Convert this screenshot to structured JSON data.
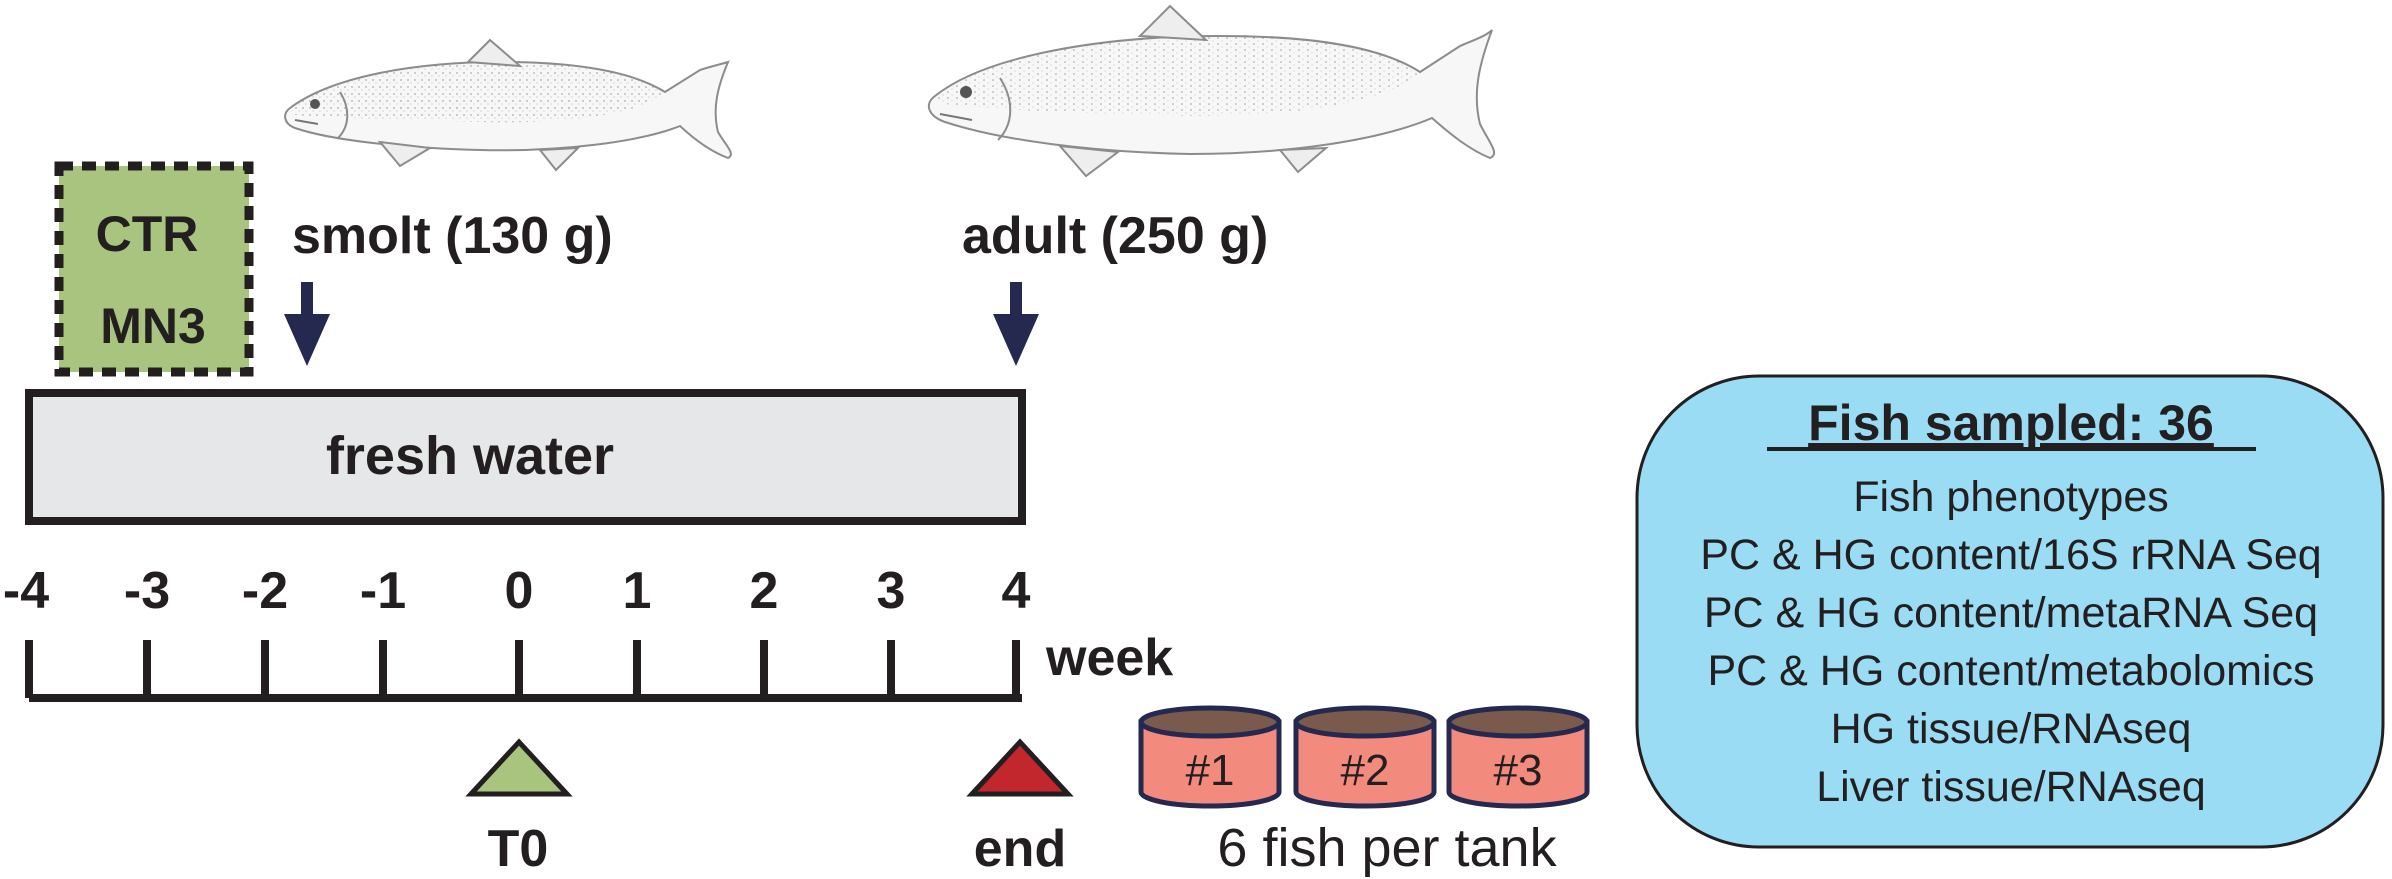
{
  "diet_box": {
    "line1": "CTR",
    "line2": "MN3",
    "fill": "#a8c47e"
  },
  "stages": {
    "smolt": "smolt (130 g)",
    "adult": "adult (250 g)"
  },
  "environment": {
    "label": "fresh water",
    "fill": "#e6e7e8"
  },
  "timeline": {
    "ticks": [
      "-4",
      "-3",
      "-2",
      "-1",
      "0",
      "1",
      "2",
      "3",
      "4"
    ],
    "unit": "week"
  },
  "sampling_points": [
    {
      "label": "T0",
      "color": "#a8c47e"
    },
    {
      "label": "end",
      "color": "#c1272d"
    }
  ],
  "tanks": {
    "labels": [
      "#1",
      "#2",
      "#3"
    ],
    "caption": "6 fish per tank",
    "body_color": "#f28a7e",
    "top_color": "#7b5a4e"
  },
  "samples_box": {
    "title": "Fish sampled: 36",
    "items": [
      "Fish phenotypes",
      "PC & HG content/16S rRNA Seq",
      "PC & HG content/metaRNA Seq",
      "PC & HG content/metabolomics",
      "HG tissue/RNAseq",
      "Liver tissue/RNAseq"
    ],
    "fill": "#9adcf4"
  },
  "arrow_color": "#25284f"
}
